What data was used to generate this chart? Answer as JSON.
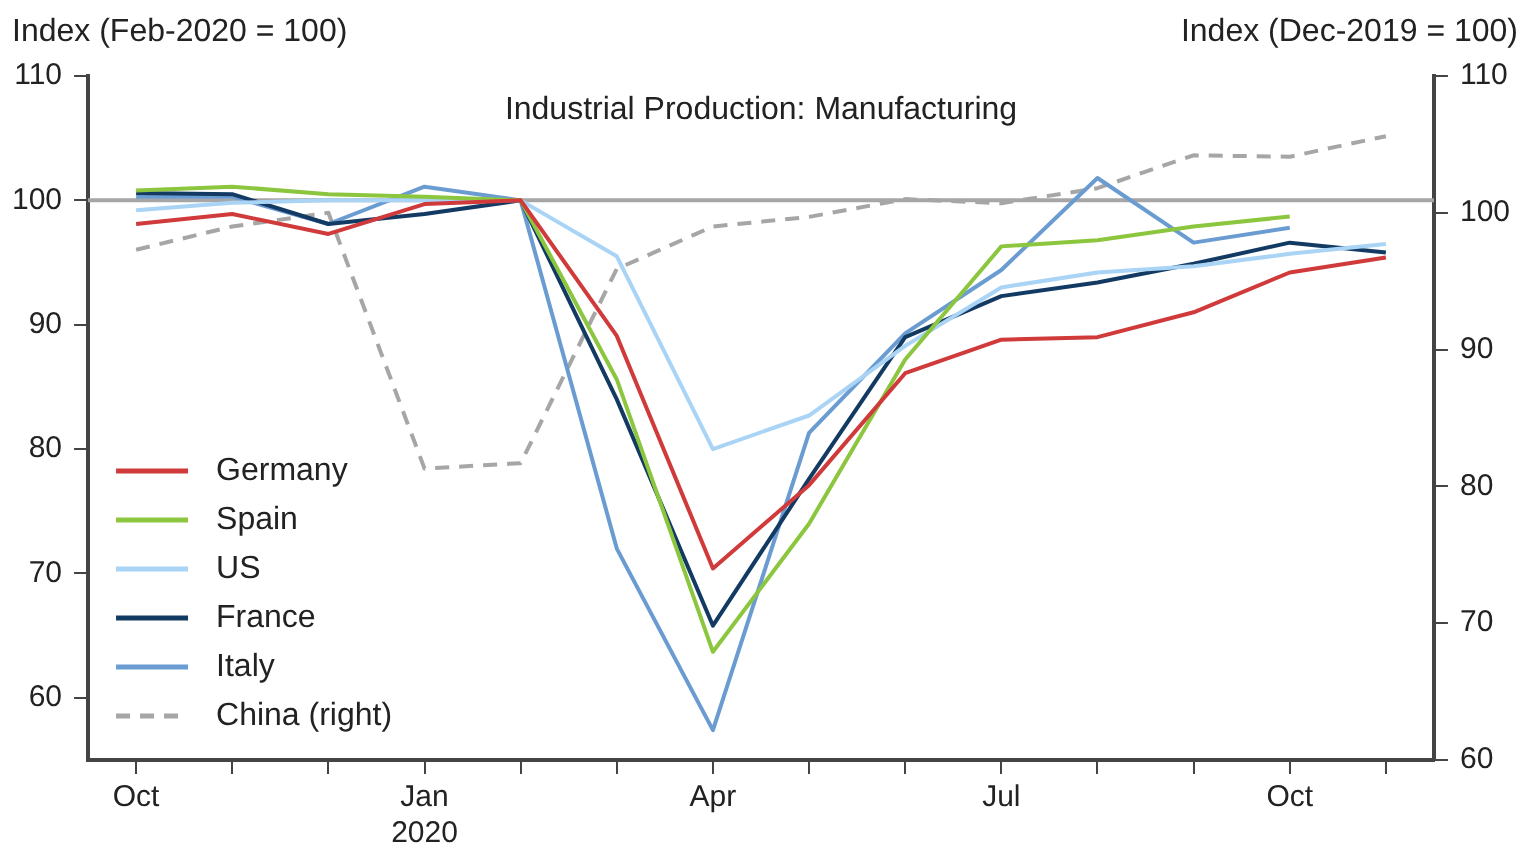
{
  "chart_data": {
    "type": "line",
    "title": "Industrial Production: Manufacturing",
    "ylabel": "Index (Feb-2020 = 100)",
    "y2label": "Index (Dec-2019 = 100)",
    "categories": [
      "Oct",
      null,
      null,
      "Jan 2020",
      null,
      null,
      "Apr",
      null,
      null,
      "Jul",
      null,
      null,
      "Oct",
      null
    ],
    "series": [
      {
        "name": "Germany",
        "color": "#d03a3a",
        "values": [
          98.1,
          98.9,
          97.3,
          99.7,
          100,
          89.1,
          70.4,
          77.1,
          86.1,
          88.8,
          89,
          91,
          94.2,
          95.4
        ]
      },
      {
        "name": "Spain",
        "color": "#8cc63f",
        "values": [
          100.8,
          101.1,
          100.5,
          100.3,
          100,
          85.6,
          63.7,
          74,
          87.2,
          96.3,
          96.8,
          97.9,
          98.7,
          null
        ]
      },
      {
        "name": "US",
        "color": "#a9d4f5",
        "values": [
          99.2,
          99.8,
          100,
          100,
          100,
          95.5,
          80,
          82.7,
          88.3,
          93,
          94.2,
          94.7,
          95.7,
          96.5
        ]
      },
      {
        "name": "France",
        "color": "#123a63",
        "values": [
          100.6,
          100.5,
          98.1,
          98.9,
          100,
          84,
          65.8,
          77.6,
          89,
          92.3,
          93.4,
          94.9,
          96.6,
          95.8
        ]
      },
      {
        "name": "Italy",
        "color": "#6a9bd1",
        "values": [
          100.3,
          100.3,
          98.1,
          101.1,
          100,
          72,
          57.4,
          81.3,
          89.3,
          94.4,
          101.8,
          96.6,
          97.8,
          null
        ]
      },
      {
        "name": "China (right)",
        "color": "#a6a6a6",
        "axis": "y2",
        "line_style": "dashed",
        "values": [
          97.3,
          99,
          100,
          81.3,
          81.7,
          95.9,
          99,
          99.7,
          101,
          100.7,
          101.8,
          104.2,
          104.1,
          105.6
        ]
      }
    ],
    "ylim": [
      55,
      110
    ],
    "yticks": [
      60,
      70,
      80,
      90,
      100,
      110
    ],
    "y2lim": [
      60,
      110
    ],
    "y2ticks": [
      60,
      70,
      80,
      90,
      100,
      110
    ],
    "ref_lines": [
      {
        "axis": "y",
        "value": 100,
        "color": "#a6a6a6"
      }
    ],
    "grid": false,
    "legend": "bottom left",
    "marker": "none",
    "line_style": "solid"
  }
}
